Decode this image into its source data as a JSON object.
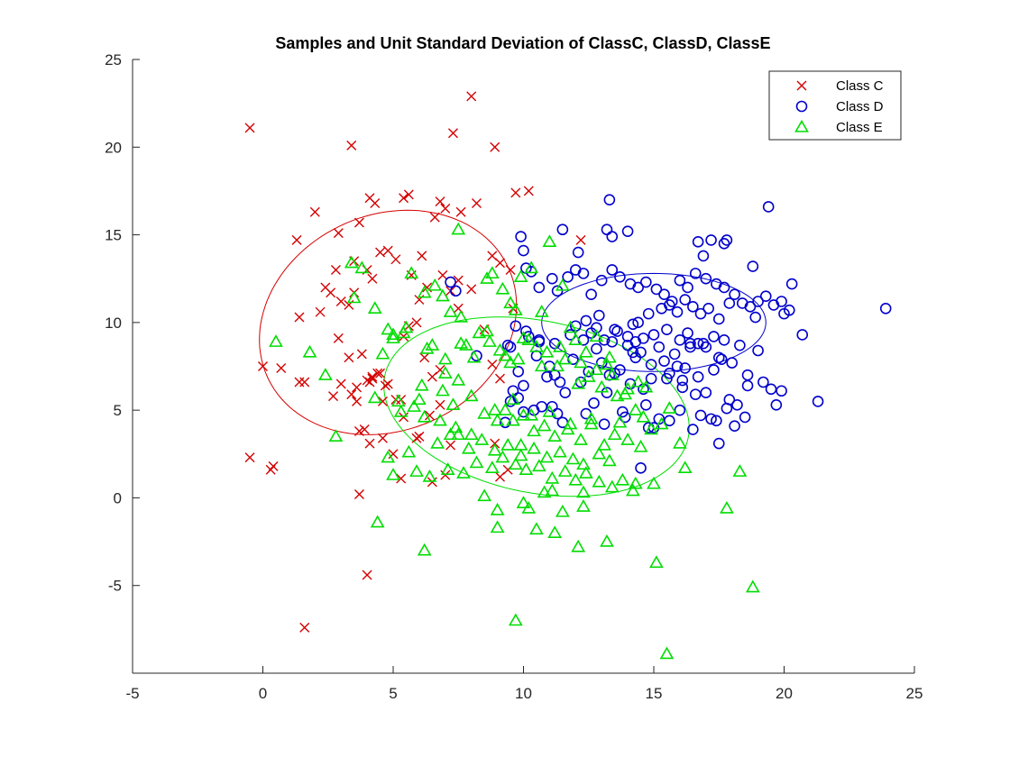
{
  "chart_data": {
    "type": "scatter",
    "title": "Samples and Unit Standard Deviation of ClassC, ClassD, ClassE",
    "xlabel": "",
    "ylabel": "",
    "xlim": [
      -5,
      25
    ],
    "ylim": [
      -10,
      25
    ],
    "xticks": [
      -5,
      0,
      5,
      10,
      15,
      20,
      25
    ],
    "yticks": [
      -5,
      0,
      5,
      10,
      15,
      20,
      25
    ],
    "grid": false,
    "legend_position": "top-right",
    "series": [
      {
        "name": "Class C",
        "marker": "x",
        "color": "#d40000",
        "x": [
          -0.5,
          3.4,
          8.0,
          7.3,
          8.9,
          9.7,
          10.2,
          -0.5,
          0.3,
          0.4,
          3.7,
          4.0,
          1.6,
          12.2,
          1.3,
          1.4,
          2.0,
          2.6,
          2.8,
          3.5,
          4.1,
          4.3,
          5.4,
          5.6,
          6.1,
          6.8,
          7.0,
          6.6,
          7.6,
          8.2,
          8.8,
          9.1,
          2.2,
          2.4,
          2.9,
          3.0,
          3.3,
          3.5,
          3.7,
          4.0,
          4.2,
          4.5,
          4.8,
          5.1,
          5.4,
          5.7,
          6.0,
          6.3,
          6.9,
          7.5,
          9.5,
          2.9,
          3.3,
          3.6,
          3.8,
          4.0,
          4.2,
          4.5,
          4.8,
          5.3,
          5.6,
          5.9,
          6.2,
          6.5,
          6.8,
          7.2,
          7.5,
          8.0,
          0.0,
          0.7,
          1.4,
          1.6,
          3.0,
          3.4,
          3.6,
          3.9,
          4.1,
          4.4,
          4.7,
          5.1,
          5.4,
          5.9,
          6.4,
          6.8,
          7.2,
          8.5,
          8.9,
          9.1,
          3.7,
          4.1,
          4.6,
          5.0,
          5.3,
          6.0,
          6.5,
          7.0,
          9.1,
          9.4,
          9.6,
          2.7,
          4.2,
          4.6,
          8.8
        ],
        "y": [
          21.1,
          20.1,
          22.9,
          20.8,
          20.0,
          17.4,
          17.5,
          2.3,
          1.6,
          1.8,
          0.2,
          -4.4,
          -7.4,
          14.7,
          14.7,
          10.3,
          16.3,
          11.7,
          13.0,
          13.5,
          17.1,
          16.8,
          17.1,
          17.3,
          13.8,
          16.9,
          16.5,
          16.0,
          16.3,
          16.8,
          13.8,
          13.4,
          10.6,
          12.0,
          15.1,
          11.2,
          11.0,
          11.7,
          15.7,
          13.0,
          12.5,
          14.0,
          14.1,
          13.6,
          9.2,
          12.7,
          11.3,
          12.0,
          12.7,
          12.4,
          13.0,
          9.1,
          8.0,
          5.5,
          8.2,
          6.7,
          6.8,
          7.1,
          6.5,
          5.6,
          9.8,
          10.0,
          8.0,
          6.9,
          7.3,
          11.8,
          10.8,
          11.9,
          7.5,
          7.4,
          6.6,
          6.6,
          6.5,
          5.9,
          6.3,
          3.9,
          6.6,
          7.1,
          6.4,
          5.6,
          4.6,
          3.4,
          4.7,
          5.3,
          3.0,
          9.6,
          3.1,
          6.8,
          3.8,
          3.1,
          3.4,
          2.5,
          1.1,
          3.5,
          0.9,
          1.3,
          1.2,
          1.6,
          10.8,
          5.8,
          6.9,
          5.5,
          7.6
        ]
      },
      {
        "name": "Class D",
        "marker": "o",
        "color": "#0000cc",
        "x": [
          13.3,
          19.4,
          9.9,
          10.0,
          11.5,
          12.1,
          13.2,
          13.4,
          14.0,
          16.7,
          17.2,
          17.7,
          17.8,
          16.9,
          18.8,
          20.3,
          20.7,
          21.3,
          23.9,
          19.9,
          10.1,
          10.3,
          10.6,
          11.1,
          11.3,
          11.7,
          12.0,
          12.3,
          12.6,
          13.0,
          13.4,
          13.7,
          14.1,
          14.4,
          14.7,
          15.1,
          15.4,
          15.7,
          16.0,
          16.3,
          16.6,
          17.0,
          17.4,
          17.7,
          18.1,
          18.4,
          18.7,
          19.0,
          19.3,
          19.6,
          19.9,
          20.2,
          12.4,
          12.9,
          13.5,
          14.2,
          14.8,
          15.3,
          15.6,
          15.9,
          16.2,
          16.5,
          16.8,
          17.1,
          17.5,
          17.9,
          12.6,
          13.1,
          13.6,
          14.0,
          14.3,
          14.6,
          15.0,
          15.5,
          16.0,
          16.4,
          16.9,
          17.3,
          17.7,
          18.3,
          18.9,
          9.7,
          10.1,
          10.6,
          11.2,
          11.8,
          12.3,
          12.8,
          13.4,
          14.0,
          14.5,
          15.2,
          15.8,
          16.4,
          17.0,
          17.5,
          9.5,
          10.5,
          11.0,
          11.9,
          12.5,
          13.0,
          13.7,
          14.3,
          14.9,
          15.6,
          16.2,
          16.7,
          17.3,
          18.0,
          18.6,
          19.2,
          20.0,
          9.6,
          10.0,
          10.9,
          11.6,
          12.2,
          13.3,
          14.1,
          14.6,
          15.5,
          16.1,
          16.6,
          9.8,
          10.7,
          11.3,
          12.7,
          13.8,
          14.7,
          15.2,
          16.0,
          16.8,
          17.4,
          17.8,
          18.5,
          9.5,
          10.4,
          11.5,
          12.4,
          13.1,
          13.9,
          14.8,
          15.6,
          16.5,
          17.2,
          18.1,
          19.5,
          9.4,
          10.2,
          11.4,
          12.0,
          13.5,
          14.4,
          14.9,
          15.9,
          16.3,
          17.0,
          17.6,
          18.2,
          19.0,
          8.2,
          9.8,
          10.6,
          11.2,
          12.8,
          14.2,
          15.4,
          16.1,
          16.7,
          17.5,
          9.3,
          10.0,
          11.1,
          13.2,
          14.5,
          15.0,
          17.9,
          18.6,
          19.7,
          7.4,
          7.2
        ],
        "y": [
          17.0,
          16.6,
          14.9,
          14.1,
          15.3,
          14.0,
          15.3,
          14.9,
          15.2,
          14.6,
          14.7,
          14.5,
          14.7,
          13.8,
          13.2,
          12.2,
          9.3,
          5.5,
          10.8,
          6.1,
          13.1,
          12.9,
          12.0,
          12.5,
          11.8,
          12.6,
          13.0,
          12.8,
          11.6,
          12.4,
          13.0,
          12.6,
          12.2,
          12.0,
          12.3,
          11.9,
          11.6,
          11.2,
          12.4,
          12.0,
          12.8,
          12.5,
          12.2,
          12.0,
          11.6,
          11.1,
          10.9,
          11.2,
          11.5,
          11.0,
          11.2,
          10.7,
          10.1,
          10.4,
          9.6,
          9.9,
          10.5,
          10.8,
          11.0,
          10.6,
          11.3,
          10.9,
          10.5,
          10.8,
          10.2,
          11.1,
          9.4,
          9.0,
          9.5,
          9.2,
          8.9,
          9.1,
          9.3,
          9.6,
          9.0,
          8.6,
          8.8,
          9.2,
          9.0,
          8.7,
          10.3,
          9.8,
          9.5,
          9.0,
          8.8,
          9.3,
          9.0,
          8.5,
          8.9,
          8.7,
          8.3,
          8.6,
          8.2,
          8.8,
          8.6,
          8.0,
          8.6,
          8.1,
          7.5,
          7.9,
          7.2,
          7.7,
          7.3,
          8.0,
          7.6,
          7.1,
          7.4,
          6.9,
          7.3,
          7.7,
          7.0,
          6.6,
          10.5,
          6.1,
          6.4,
          6.9,
          6.0,
          6.6,
          7.0,
          6.5,
          6.2,
          6.8,
          6.3,
          5.9,
          5.7,
          5.2,
          4.8,
          5.4,
          4.9,
          5.3,
          4.5,
          5.0,
          4.7,
          4.4,
          5.1,
          4.6,
          5.5,
          5.0,
          4.3,
          4.8,
          4.2,
          4.6,
          4.0,
          4.4,
          3.9,
          4.5,
          4.1,
          6.2,
          8.7,
          9.2,
          6.6,
          9.8,
          7.1,
          10.0,
          6.8,
          7.5,
          9.4,
          6.0,
          7.9,
          5.3,
          8.4,
          8.1,
          7.2,
          8.9,
          7.0,
          9.7,
          8.3,
          7.8,
          6.7,
          8.8,
          3.1,
          4.3,
          4.9,
          5.2,
          6.0,
          1.7,
          4.0,
          5.6,
          6.4,
          5.3,
          11.8,
          12.3
        ]
      },
      {
        "name": "Class E",
        "marker": "triangle",
        "color": "#00dd00",
        "x": [
          0.5,
          1.8,
          2.4,
          2.8,
          3.5,
          3.4,
          3.8,
          4.3,
          4.8,
          5.0,
          5.4,
          5.7,
          6.2,
          6.6,
          6.9,
          7.2,
          7.6,
          7.8,
          8.1,
          8.6,
          8.8,
          9.2,
          9.5,
          9.7,
          9.9,
          10.3,
          10.7,
          11.0,
          11.5,
          11.8,
          12.0,
          12.4,
          12.8,
          13.2,
          13.6,
          14.0,
          14.3,
          14.6,
          14.9,
          15.3,
          15.6,
          16.0,
          16.2,
          17.8,
          18.3,
          18.8,
          4.3,
          5.2,
          6.0,
          6.5,
          7.0,
          7.5,
          8.3,
          8.7,
          9.1,
          9.5,
          9.8,
          10.2,
          10.5,
          10.9,
          11.3,
          11.6,
          12.1,
          12.5,
          13.0,
          13.4,
          13.9,
          14.4,
          14.7,
          5.3,
          5.8,
          6.2,
          6.8,
          7.4,
          8.0,
          8.5,
          9.0,
          9.3,
          9.6,
          10.0,
          10.4,
          10.8,
          11.2,
          11.7,
          12.2,
          12.6,
          13.1,
          13.5,
          14.0,
          14.5,
          4.8,
          5.6,
          6.7,
          7.2,
          7.9,
          8.4,
          8.9,
          9.4,
          9.9,
          10.4,
          10.9,
          11.4,
          11.9,
          12.3,
          12.9,
          13.3,
          5.0,
          5.9,
          6.4,
          7.1,
          7.7,
          8.2,
          8.8,
          9.2,
          9.7,
          10.1,
          10.6,
          11.1,
          11.6,
          12.0,
          12.4,
          12.9,
          13.4,
          13.8,
          14.2,
          15.0,
          4.6,
          5.5,
          6.3,
          7.0,
          7.6,
          8.6,
          9.3,
          10.0,
          10.7,
          11.4,
          12.2,
          12.8,
          13.3,
          6.1,
          6.9,
          7.3,
          8.0,
          8.9,
          9.6,
          10.3,
          11.0,
          11.8,
          12.6,
          13.7,
          7.5,
          8.5,
          9.0,
          10.5,
          11.2,
          12.1,
          9.0,
          10.0,
          10.2,
          11.5,
          12.3,
          13.2,
          15.1,
          4.4,
          6.2,
          9.7,
          15.5,
          5.0,
          10.8,
          11.1,
          12.3,
          14.3,
          7.5,
          9.9
        ],
        "y": [
          8.9,
          8.3,
          7.0,
          3.5,
          11.4,
          13.4,
          13.1,
          10.8,
          9.6,
          9.3,
          9.4,
          12.8,
          11.7,
          12.1,
          11.5,
          10.6,
          10.3,
          8.7,
          8.0,
          12.5,
          12.8,
          11.9,
          11.1,
          10.7,
          12.6,
          13.1,
          10.6,
          14.6,
          12.1,
          9.7,
          9.0,
          8.3,
          9.2,
          7.6,
          5.8,
          6.2,
          5.0,
          4.6,
          3.9,
          4.2,
          5.1,
          3.1,
          1.7,
          -0.6,
          1.5,
          -5.1,
          5.7,
          5.5,
          5.6,
          8.7,
          7.1,
          6.7,
          9.4,
          8.9,
          8.4,
          7.7,
          7.9,
          9.0,
          8.6,
          8.3,
          7.5,
          7.9,
          6.5,
          6.9,
          6.3,
          7.0,
          5.9,
          6.6,
          6.3,
          4.9,
          5.2,
          4.6,
          4.4,
          4.0,
          3.6,
          4.8,
          4.4,
          5.0,
          4.4,
          4.7,
          3.8,
          4.1,
          3.5,
          3.9,
          3.3,
          4.2,
          3.0,
          3.6,
          3.3,
          2.9,
          2.3,
          2.6,
          3.1,
          3.6,
          2.8,
          3.3,
          2.7,
          3.0,
          2.4,
          2.8,
          2.3,
          2.6,
          2.2,
          1.9,
          2.5,
          2.1,
          1.3,
          1.5,
          1.2,
          1.6,
          1.4,
          2.0,
          1.7,
          2.3,
          1.9,
          1.6,
          1.8,
          1.1,
          1.5,
          1.0,
          1.4,
          0.9,
          0.6,
          1.0,
          0.4,
          0.8,
          8.2,
          9.7,
          8.5,
          7.9,
          8.8,
          9.5,
          8.1,
          9.1,
          7.5,
          8.6,
          7.7,
          7.3,
          8.0,
          6.4,
          6.1,
          5.3,
          5.8,
          5.0,
          5.6,
          4.7,
          4.9,
          4.2,
          4.5,
          4.3,
          15.3,
          0.1,
          -1.7,
          -1.8,
          -2.0,
          -2.8,
          -0.7,
          -0.3,
          -0.6,
          -0.8,
          -0.5,
          -2.5,
          -3.7,
          -1.4,
          -3.0,
          -7.0,
          -8.9,
          9.1,
          0.3,
          0.4,
          0.3,
          0.8,
          3.6,
          3.0
        ]
      }
    ],
    "ellipses": [
      {
        "series": "Class C",
        "center": [
          4.8,
          10.0
        ],
        "semi_major": 6.5,
        "semi_minor": 4.8,
        "angle_deg": 75,
        "color": "#d40000"
      },
      {
        "series": "Class D",
        "center": [
          15.0,
          10.0
        ],
        "semi_major": 4.3,
        "semi_minor": 2.8,
        "angle_deg": 0,
        "color": "#0000cc"
      },
      {
        "series": "Class E",
        "center": [
          10.5,
          5.2
        ],
        "semi_major": 6.2,
        "semi_minor": 4.7,
        "angle_deg": -30,
        "color": "#00dd00"
      }
    ]
  }
}
